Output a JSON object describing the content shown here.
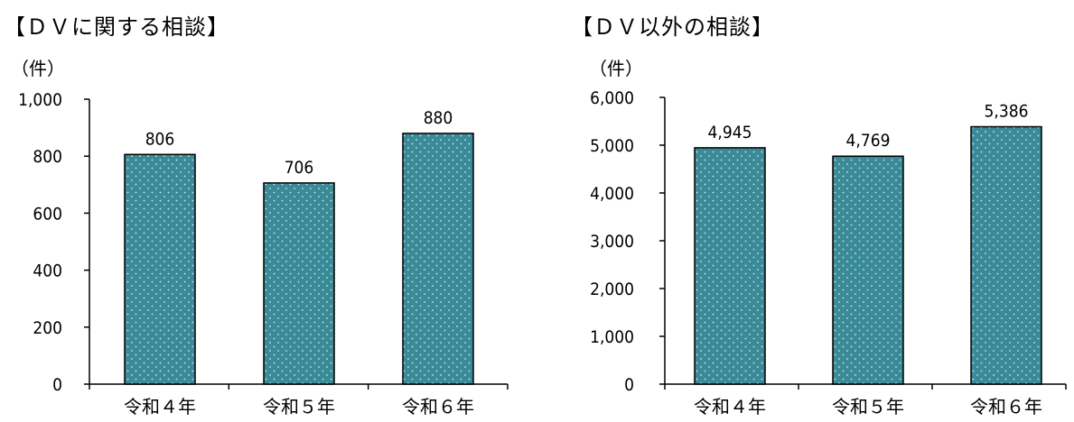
{
  "chart_data": [
    {
      "type": "bar",
      "title": "【ＤＶに関する相談】",
      "unit": "（件）",
      "categories": [
        "令和４年",
        "令和５年",
        "令和６年"
      ],
      "values": [
        806,
        706,
        880
      ],
      "value_labels": [
        "806",
        "706",
        "880"
      ],
      "ylim": [
        0,
        1000
      ],
      "yticks": [
        0,
        200,
        400,
        600,
        800,
        1000
      ],
      "ytick_labels": [
        "0",
        "200",
        "400",
        "600",
        "800",
        "1,000"
      ],
      "bar_color": "#3b8a97",
      "grid": false
    },
    {
      "type": "bar",
      "title": "【ＤＶ以外の相談】",
      "unit": "（件）",
      "categories": [
        "令和４年",
        "令和５年",
        "令和６年"
      ],
      "values": [
        4945,
        4769,
        5386
      ],
      "value_labels": [
        "4,945",
        "4,769",
        "5,386"
      ],
      "ylim": [
        0,
        6000
      ],
      "yticks": [
        0,
        1000,
        2000,
        3000,
        4000,
        5000,
        6000
      ],
      "ytick_labels": [
        "0",
        "1,000",
        "2,000",
        "3,000",
        "4,000",
        "5,000",
        "6,000"
      ],
      "bar_color": "#3b8a97",
      "grid": false
    }
  ]
}
